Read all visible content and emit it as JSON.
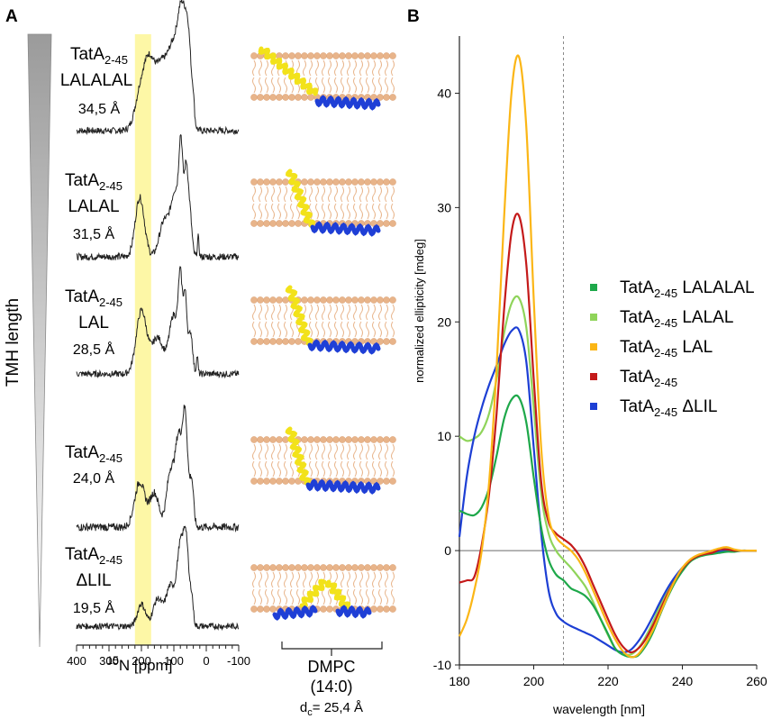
{
  "panel_a": {
    "label": "A",
    "side_label": "TMH  length",
    "x_axis": {
      "label_sup": "15",
      "label_main": "N [ppm]",
      "ticks": [
        "400",
        "300",
        "200",
        "100",
        "0",
        "-100"
      ]
    },
    "membrane_label": {
      "line1": "DMPC",
      "line2": "(14:0)",
      "dc_main": "d",
      "dc_sub": "c",
      "dc_rest": "= 25,4 Å"
    },
    "rows": [
      {
        "name": "TatA",
        "sub": "2-45",
        "variant": "LALALAL",
        "length": "34,5 Å"
      },
      {
        "name": "TatA",
        "sub": "2-45",
        "variant": "LALAL",
        "length": "31,5 Å"
      },
      {
        "name": "TatA",
        "sub": "2-45",
        "variant": "LAL",
        "length": "28,5 Å"
      },
      {
        "name": "TatA",
        "sub": "2-45",
        "variant": "",
        "length": "24,0 Å"
      },
      {
        "name": "TatA",
        "sub": "2-45",
        "variant": "ΔLIL",
        "length": "19,5 Å"
      }
    ],
    "highlight_ppm": [
      220,
      170
    ],
    "colors": {
      "highlight": "#fdf7a6",
      "spectrum": "#222222",
      "helix_tm": "#f2e21a",
      "helix_amph": "#1f3fd6",
      "lipid": "#e8b48a"
    }
  },
  "panel_b": {
    "label": "B",
    "chart_data": {
      "type": "line",
      "title": "",
      "xlabel": "wavelength [nm]",
      "ylabel": "normalized ellipticity [mdeg]",
      "xlim": [
        180,
        260
      ],
      "ylim": [
        -10,
        45
      ],
      "xticks": [
        180,
        200,
        220,
        240,
        260
      ],
      "yticks": [
        -10,
        0,
        10,
        20,
        30,
        40
      ],
      "xtick_labels": [
        "180",
        "200",
        "220",
        "240",
        "260"
      ],
      "ytick_labels": [
        "-10",
        "0",
        "10",
        "20",
        "30",
        "40"
      ],
      "zero_line": 0,
      "dashed_vline": 208,
      "grid": false,
      "legend_position": "right",
      "series": [
        {
          "name": "TatA",
          "sub": "2-45",
          "suffix": "LALALAL",
          "color": "#1ea84a",
          "x": [
            180,
            182,
            184,
            186,
            188,
            190,
            192,
            194,
            196,
            198,
            200,
            202,
            204,
            206,
            208,
            210,
            212,
            214,
            216,
            218,
            220,
            222,
            224,
            226,
            228,
            230,
            232,
            234,
            236,
            238,
            240,
            242,
            244,
            246,
            248,
            250,
            252,
            254,
            256,
            258,
            260
          ],
          "y": [
            3.5,
            3.2,
            3.1,
            3.8,
            5.5,
            8.3,
            11.5,
            13.2,
            13.4,
            11.2,
            6.4,
            2.0,
            -0.8,
            -2.1,
            -2.6,
            -3.3,
            -3.6,
            -4.0,
            -4.8,
            -6.0,
            -7.3,
            -8.6,
            -9.1,
            -9.3,
            -9.2,
            -8.4,
            -7.2,
            -5.6,
            -4.1,
            -2.8,
            -1.8,
            -1.0,
            -0.6,
            -0.4,
            -0.3,
            -0.2,
            -0.1,
            -0.1,
            0.0,
            0.0,
            0.0
          ]
        },
        {
          "name": "TatA",
          "sub": "2-45",
          "suffix": "LALAL",
          "color": "#8fd45a",
          "x": [
            180,
            182,
            184,
            186,
            188,
            190,
            192,
            194,
            196,
            198,
            200,
            202,
            204,
            206,
            208,
            210,
            212,
            214,
            216,
            218,
            220,
            222,
            224,
            226,
            228,
            230,
            232,
            234,
            236,
            238,
            240,
            242,
            244,
            246,
            248,
            250,
            252,
            254,
            256,
            258,
            260
          ],
          "y": [
            10.0,
            9.6,
            9.8,
            10.4,
            12.0,
            15.0,
            19.0,
            21.6,
            22.1,
            19.5,
            12.5,
            5.0,
            1.5,
            0.0,
            -0.8,
            -1.5,
            -2.3,
            -3.2,
            -4.5,
            -6.0,
            -7.4,
            -8.6,
            -9.0,
            -9.1,
            -8.6,
            -7.6,
            -6.3,
            -4.8,
            -3.5,
            -2.4,
            -1.5,
            -0.9,
            -0.5,
            -0.3,
            -0.2,
            0.1,
            0.2,
            0.0,
            0.0,
            0.0,
            0.0
          ]
        },
        {
          "name": "TatA",
          "sub": "2-45",
          "suffix": "LAL",
          "color": "#fbb616",
          "x": [
            180,
            182,
            184,
            186,
            188,
            190,
            192,
            194,
            196,
            198,
            200,
            202,
            204,
            206,
            208,
            210,
            212,
            214,
            216,
            218,
            220,
            222,
            224,
            226,
            228,
            230,
            232,
            234,
            236,
            238,
            240,
            242,
            244,
            246,
            248,
            250,
            252,
            254,
            256,
            258,
            260
          ],
          "y": [
            -7.5,
            -6.0,
            -3.5,
            0.0,
            6.0,
            16.0,
            29.0,
            40.0,
            43.2,
            37.0,
            22.0,
            9.0,
            3.0,
            1.2,
            0.5,
            0.0,
            -0.8,
            -2.0,
            -3.5,
            -5.0,
            -6.5,
            -7.8,
            -8.8,
            -9.3,
            -9.1,
            -8.2,
            -7.0,
            -5.5,
            -4.0,
            -2.6,
            -1.5,
            -0.8,
            -0.4,
            -0.2,
            0.0,
            0.2,
            0.3,
            0.1,
            0.0,
            0.0,
            0.0
          ]
        },
        {
          "name": "TatA",
          "sub": "2-45",
          "suffix": "",
          "color": "#c41a1a",
          "x": [
            180,
            182,
            184,
            186,
            188,
            190,
            192,
            194,
            196,
            198,
            200,
            202,
            204,
            206,
            208,
            210,
            212,
            214,
            216,
            218,
            220,
            222,
            224,
            226,
            228,
            230,
            232,
            234,
            236,
            238,
            240,
            242,
            244,
            246,
            248,
            250,
            252,
            254,
            256,
            258,
            260
          ],
          "y": [
            -2.8,
            -2.6,
            -2.3,
            0.5,
            5.0,
            12.0,
            21.0,
            27.8,
            29.3,
            25.0,
            15.0,
            6.0,
            2.5,
            1.5,
            1.0,
            0.5,
            -0.3,
            -1.5,
            -3.0,
            -4.5,
            -6.0,
            -7.4,
            -8.4,
            -8.9,
            -8.6,
            -7.8,
            -6.6,
            -5.2,
            -3.8,
            -2.6,
            -1.6,
            -0.9,
            -0.5,
            -0.3,
            -0.2,
            0.1,
            0.1,
            0.0,
            0.0,
            0.0,
            0.0
          ]
        },
        {
          "name": "TatA",
          "sub": "2-45",
          "suffix": "ΔLIL",
          "color": "#1d3fd4",
          "x": [
            180,
            182,
            184,
            186,
            188,
            190,
            192,
            194,
            196,
            198,
            200,
            202,
            204,
            206,
            208,
            210,
            212,
            214,
            216,
            218,
            220,
            222,
            224,
            226,
            228,
            230,
            232,
            234,
            236,
            238,
            240,
            242,
            244,
            246,
            248,
            250,
            252,
            254,
            256,
            258,
            260
          ],
          "y": [
            1.2,
            6.5,
            10.0,
            12.5,
            14.5,
            16.2,
            18.0,
            19.2,
            19.3,
            16.5,
            9.0,
            1.5,
            -3.5,
            -5.5,
            -6.2,
            -6.6,
            -6.9,
            -7.2,
            -7.5,
            -7.9,
            -8.3,
            -8.7,
            -8.9,
            -8.7,
            -8.0,
            -7.0,
            -5.8,
            -4.5,
            -3.3,
            -2.3,
            -1.5,
            -0.9,
            -0.5,
            -0.3,
            -0.2,
            -0.1,
            0.0,
            0.0,
            0.0,
            0.0,
            0.0
          ]
        }
      ]
    }
  }
}
